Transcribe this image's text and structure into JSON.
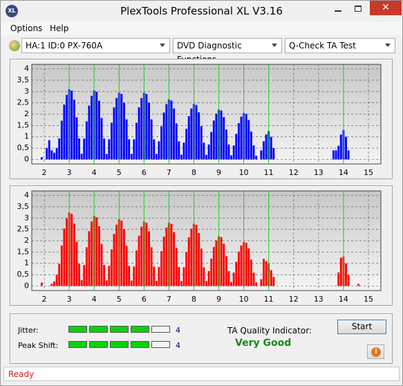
{
  "window": {
    "title": "PlexTools Professional XL V3.16",
    "logo": "XL"
  },
  "menu": [
    "Options",
    "Help"
  ],
  "toolbar": {
    "drive": "HA:1 ID:0  PX-760A",
    "function": "DVD Diagnostic Functions",
    "test": "Q-Check TA Test"
  },
  "chart_data": [
    {
      "type": "bar",
      "color": "#0000ff",
      "grid": true,
      "xlim": [
        1.5,
        15.5
      ],
      "ylim": [
        -0.2,
        4.2
      ],
      "xticks": [
        2,
        3,
        4,
        5,
        6,
        7,
        8,
        9,
        10,
        11,
        12,
        13,
        14,
        15
      ],
      "yticks": [
        0,
        {
          "value": 0.5,
          "label": "0,5"
        },
        1,
        {
          "value": 1.5,
          "label": "1,5"
        },
        2,
        {
          "value": 2.5,
          "label": "2,5"
        },
        3,
        {
          "value": 3.5,
          "label": "3,5"
        },
        4
      ],
      "markers": [
        3,
        4,
        5,
        6,
        7,
        8,
        9,
        10,
        11,
        14
      ],
      "x": [
        1.9,
        2.1,
        2.2,
        2.3,
        2.4,
        2.5,
        2.6,
        2.7,
        2.8,
        2.9,
        3,
        3.1,
        3.2,
        3.3,
        3.4,
        3.5,
        3.6,
        3.7,
        3.8,
        3.9,
        4,
        4.1,
        4.2,
        4.3,
        4.4,
        4.5,
        4.6,
        4.7,
        4.8,
        4.9,
        5,
        5.1,
        5.2,
        5.3,
        5.4,
        5.5,
        5.6,
        5.7,
        5.8,
        5.9,
        6,
        6.1,
        6.2,
        6.3,
        6.4,
        6.5,
        6.6,
        6.7,
        6.8,
        6.9,
        7,
        7.1,
        7.2,
        7.3,
        7.4,
        7.5,
        7.6,
        7.7,
        7.8,
        7.9,
        8,
        8.1,
        8.2,
        8.3,
        8.4,
        8.5,
        8.6,
        8.7,
        8.8,
        8.9,
        9,
        9.1,
        9.2,
        9.3,
        9.4,
        9.5,
        9.6,
        9.7,
        9.8,
        9.9,
        10,
        10.1,
        10.2,
        10.3,
        10.4,
        10.5,
        10.7,
        10.8,
        10.9,
        11,
        11.1,
        11.2,
        13.6,
        13.7,
        13.8,
        13.9,
        14,
        14.1,
        14.2
      ],
      "values": [
        0.1,
        0.5,
        0.85,
        0.4,
        0.3,
        0.5,
        0.93,
        1.71,
        2.42,
        2.85,
        3.1,
        3.04,
        2.64,
        1.86,
        0.93,
        0.25,
        0.92,
        1.68,
        2.38,
        2.81,
        3.05,
        2.99,
        2.59,
        1.83,
        0.92,
        0.24,
        0.89,
        1.62,
        2.3,
        2.71,
        2.95,
        2.89,
        2.51,
        1.77,
        0.89,
        0.24,
        0.89,
        1.62,
        2.3,
        2.71,
        2.95,
        2.89,
        2.51,
        1.77,
        0.89,
        0.24,
        0.8,
        1.46,
        2.07,
        2.44,
        2.65,
        2.6,
        2.25,
        1.59,
        0.8,
        0.21,
        0.74,
        1.35,
        1.91,
        2.25,
        2.45,
        2.4,
        2.08,
        1.47,
        0.74,
        0.2,
        0.66,
        1.21,
        1.72,
        2.02,
        2.2,
        2.16,
        1.87,
        1.32,
        0.66,
        0.18,
        0.62,
        1.13,
        1.6,
        1.89,
        2.05,
        2.01,
        1.74,
        1.23,
        0.62,
        0.16,
        0.4,
        0.8,
        1.1,
        1.25,
        1.0,
        0.5,
        0.4,
        0.4,
        0.6,
        1.1,
        1.3,
        1.0,
        0.4
      ]
    },
    {
      "type": "bar",
      "color": "#ff0000",
      "grid": true,
      "xlim": [
        1.5,
        15.5
      ],
      "ylim": [
        -0.2,
        4.2
      ],
      "xticks": [
        2,
        3,
        4,
        5,
        6,
        7,
        8,
        9,
        10,
        11,
        12,
        13,
        14,
        15
      ],
      "yticks": [
        0,
        {
          "value": 0.5,
          "label": "0,5"
        },
        1,
        {
          "value": 1.5,
          "label": "1,5"
        },
        2,
        {
          "value": 2.5,
          "label": "2,5"
        },
        3,
        {
          "value": 3.5,
          "label": "3,5"
        },
        4
      ],
      "markers": [
        3,
        4,
        5,
        6,
        7,
        8,
        9,
        10,
        11,
        14
      ],
      "x": [
        1.9,
        2.3,
        2.4,
        2.5,
        2.6,
        2.7,
        2.8,
        2.9,
        3,
        3.1,
        3.2,
        3.3,
        3.4,
        3.5,
        3.6,
        3.7,
        3.8,
        3.9,
        4,
        4.1,
        4.2,
        4.3,
        4.4,
        4.5,
        4.6,
        4.7,
        4.8,
        4.9,
        5,
        5.1,
        5.2,
        5.3,
        5.4,
        5.5,
        5.6,
        5.7,
        5.8,
        5.9,
        6,
        6.1,
        6.2,
        6.3,
        6.4,
        6.5,
        6.6,
        6.7,
        6.8,
        6.9,
        7,
        7.1,
        7.2,
        7.3,
        7.4,
        7.5,
        7.6,
        7.7,
        7.8,
        7.9,
        8,
        8.1,
        8.2,
        8.3,
        8.4,
        8.5,
        8.6,
        8.7,
        8.8,
        8.9,
        9,
        9.1,
        9.2,
        9.3,
        9.4,
        9.5,
        9.6,
        9.7,
        9.8,
        9.9,
        10,
        10.1,
        10.2,
        10.3,
        10.4,
        10.5,
        10.7,
        10.8,
        10.9,
        11,
        11.1,
        11.2,
        13.8,
        13.9,
        14,
        14.1,
        14.2,
        14.6
      ],
      "values": [
        0.15,
        0.1,
        0.2,
        0.5,
        0.98,
        1.79,
        2.54,
        2.99,
        3.25,
        3.19,
        2.76,
        1.95,
        0.98,
        0.26,
        0.93,
        1.71,
        2.42,
        2.85,
        3.1,
        3.04,
        2.64,
        1.86,
        0.93,
        0.25,
        0.89,
        1.62,
        2.3,
        2.71,
        2.95,
        2.89,
        2.51,
        1.77,
        0.89,
        0.24,
        0.86,
        1.57,
        2.22,
        2.62,
        2.85,
        2.79,
        2.42,
        1.71,
        0.86,
        0.23,
        0.84,
        1.54,
        2.18,
        2.58,
        2.8,
        2.74,
        2.38,
        1.68,
        0.84,
        0.22,
        0.83,
        1.51,
        2.15,
        2.53,
        2.75,
        2.7,
        2.34,
        1.65,
        0.83,
        0.22,
        0.66,
        1.21,
        1.72,
        2.02,
        2.2,
        2.16,
        1.87,
        1.32,
        0.66,
        0.18,
        0.59,
        1.07,
        1.52,
        1.79,
        1.95,
        1.91,
        1.66,
        1.17,
        0.59,
        0.16,
        0.3,
        1.2,
        1.1,
        1.0,
        0.7,
        0.4,
        0.6,
        1.25,
        1.3,
        1.0,
        0.5,
        0.1
      ]
    }
  ],
  "results": {
    "jitter_label": "Jitter:",
    "jitter": 4,
    "peak_shift_label": "Peak Shift:",
    "peak_shift": 4,
    "quality_label": "TA Quality Indicator:",
    "quality": "Very Good",
    "start": "Start"
  },
  "status": "Ready"
}
